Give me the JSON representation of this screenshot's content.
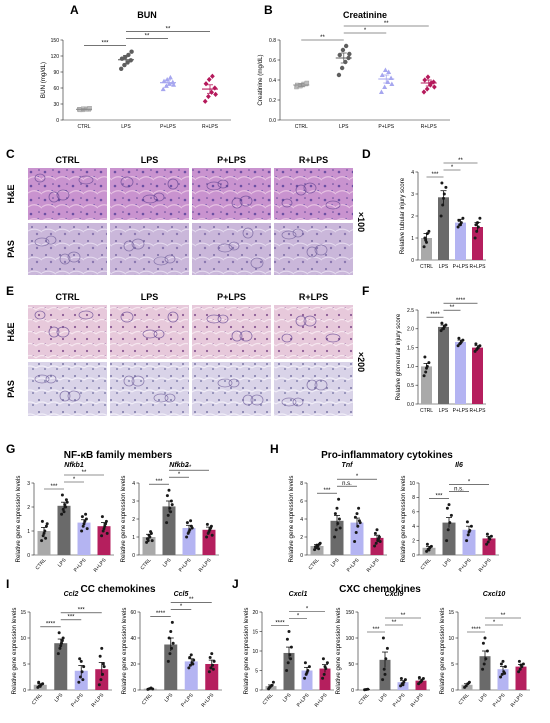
{
  "panels": [
    "A",
    "B",
    "C",
    "D",
    "E",
    "F",
    "G",
    "H",
    "I",
    "J"
  ],
  "groups": [
    "CTRL",
    "LPS",
    "P+LPS",
    "R+LPS"
  ],
  "colors": {
    "ctrl": "#8c8c8c",
    "lps": "#5e5e5e",
    "p_lps": "#a6a6ef",
    "r_lps": "#b5195b",
    "ctrl_bar": "#a9a9a9",
    "lps_bar": "#6a6a6a",
    "p_bar": "#b4b4f2",
    "r_bar": "#b51f5e"
  },
  "histology": {
    "row_labels": [
      "H&E",
      "PAS"
    ],
    "col_labels": [
      "CTRL",
      "LPS",
      "P+LPS",
      "R+LPS"
    ],
    "mag_C": "×100",
    "mag_E": "×200"
  },
  "sections": {
    "G": "NF-κB family members",
    "H": "Pro-inflammatory cytokines",
    "I": "CC chemokines",
    "J": "CXC chemokines"
  },
  "charts": [
    {
      "id": "A",
      "title": "BUN",
      "type": "scatter",
      "ylabel": "BUN (mg/dL)",
      "ylim": [
        0,
        150
      ],
      "yticks": [
        "0",
        "30",
        "60",
        "90",
        "120",
        "150"
      ],
      "sig": [
        "***",
        "**",
        "**"
      ],
      "means": [
        20,
        113,
        70,
        58
      ],
      "sem": [
        1,
        8,
        5,
        8
      ],
      "points": [
        [
          20,
          19,
          21,
          20,
          19,
          21,
          20,
          22
        ],
        [
          96,
          103,
          108,
          112,
          115,
          118,
          122,
          128
        ],
        [
          58,
          64,
          68,
          71,
          73,
          76,
          80,
          66
        ],
        [
          35,
          44,
          52,
          60,
          68,
          76,
          82,
          48
        ]
      ]
    },
    {
      "id": "B",
      "title": "Creatinine",
      "type": "scatter",
      "ylabel": "Creatinine (mg/dL)",
      "ylim": [
        0.0,
        0.8
      ],
      "yticks": [
        "0.0",
        "0.2",
        "0.4",
        "0.6",
        "0.8"
      ],
      "sig": [
        "**",
        "*",
        "**"
      ],
      "means": [
        0.35,
        0.62,
        0.41,
        0.37
      ],
      "sem": [
        0.015,
        0.05,
        0.04,
        0.03
      ],
      "points": [
        [
          0.33,
          0.34,
          0.35,
          0.36,
          0.35,
          0.34,
          0.36,
          0.37
        ],
        [
          0.45,
          0.52,
          0.58,
          0.62,
          0.65,
          0.7,
          0.74,
          0.66
        ],
        [
          0.28,
          0.33,
          0.38,
          0.42,
          0.45,
          0.5,
          0.48,
          0.36
        ],
        [
          0.28,
          0.31,
          0.35,
          0.38,
          0.4,
          0.43,
          0.37,
          0.33
        ]
      ]
    },
    {
      "id": "D",
      "type": "bar",
      "ylabel": "Relative tubular injury score",
      "ylim": [
        0,
        4
      ],
      "yticks": [
        "0",
        "1",
        "2",
        "3",
        "4"
      ],
      "sig": [
        "***",
        "*",
        "**"
      ],
      "means": [
        1.0,
        2.85,
        1.7,
        1.5
      ],
      "sem": [
        0.2,
        0.3,
        0.15,
        0.2
      ],
      "points": [
        [
          0.6,
          0.9,
          1.2,
          1.3,
          1.0,
          0.8
        ],
        [
          2.0,
          2.5,
          3.0,
          3.3,
          3.5,
          2.8
        ],
        [
          1.5,
          1.6,
          1.7,
          1.9,
          1.8,
          1.6
        ],
        [
          1.0,
          1.3,
          1.5,
          1.9,
          1.6,
          1.7
        ]
      ]
    },
    {
      "id": "F",
      "type": "bar",
      "ylabel": "Relative glomerular injury score",
      "ylim": [
        0.0,
        2.5
      ],
      "yticks": [
        "0.0",
        "0.5",
        "1.0",
        "1.5",
        "2.0",
        "2.5"
      ],
      "sig": [
        "****",
        "**",
        "****"
      ],
      "means": [
        1.0,
        2.05,
        1.65,
        1.5
      ],
      "sem": [
        0.08,
        0.05,
        0.05,
        0.05
      ],
      "points": [
        [
          0.75,
          0.85,
          1.0,
          1.1,
          1.25,
          0.95
        ],
        [
          1.95,
          2.0,
          2.05,
          2.1,
          2.15,
          2.0
        ],
        [
          1.55,
          1.6,
          1.65,
          1.7,
          1.75,
          1.62
        ],
        [
          1.4,
          1.45,
          1.5,
          1.55,
          1.6,
          1.48
        ]
      ]
    },
    {
      "id": "G1",
      "gene": "Nfkb1",
      "type": "bar",
      "ylabel": "Relative gene expression levels",
      "ylim": [
        0,
        3
      ],
      "yticks": [
        "0",
        "1",
        "2",
        "3"
      ],
      "sig": [
        "***",
        "*",
        "**"
      ],
      "means": [
        1.0,
        2.05,
        1.35,
        1.2
      ],
      "sem": [
        0.15,
        0.15,
        0.12,
        0.15
      ],
      "points": [
        [
          0.6,
          0.8,
          1.0,
          1.2,
          1.4,
          0.9,
          0.7,
          1.3
        ],
        [
          1.7,
          1.9,
          2.1,
          2.3,
          2.5,
          1.8,
          2.0,
          2.2
        ],
        [
          1.0,
          1.2,
          1.4,
          1.5,
          1.6,
          1.3,
          1.7,
          1.1
        ],
        [
          0.8,
          1.0,
          1.2,
          1.4,
          1.6,
          1.1,
          1.3,
          0.9
        ]
      ]
    },
    {
      "id": "G2",
      "gene": "Nfkb2",
      "type": "bar",
      "ylabel": "Relative gene expression levels",
      "ylim": [
        0,
        4
      ],
      "yticks": [
        "0",
        "1",
        "2",
        "3",
        "4"
      ],
      "sig": [
        "***",
        "*",
        "**"
      ],
      "means": [
        1.0,
        2.7,
        1.5,
        1.4
      ],
      "sem": [
        0.15,
        0.3,
        0.15,
        0.15
      ],
      "points": [
        [
          0.7,
          0.8,
          1.0,
          1.2,
          0.9,
          1.1,
          1.3,
          0.8
        ],
        [
          1.8,
          2.2,
          2.6,
          3.0,
          3.3,
          3.6,
          2.4,
          2.8
        ],
        [
          1.0,
          1.2,
          1.4,
          1.6,
          1.8,
          1.3,
          1.9,
          1.5
        ],
        [
          1.0,
          1.2,
          1.4,
          1.6,
          1.7,
          1.3,
          1.5,
          1.1
        ]
      ]
    },
    {
      "id": "H1",
      "gene": "Tnf",
      "type": "bar",
      "ylabel": "Relative gene expression levels",
      "ylim": [
        0,
        8
      ],
      "yticks": [
        "0",
        "2",
        "4",
        "6",
        "8"
      ],
      "sig": [
        "***",
        "n.s.",
        "*"
      ],
      "means": [
        1.0,
        3.8,
        3.6,
        1.9
      ],
      "sem": [
        0.15,
        0.6,
        0.5,
        0.3
      ],
      "points": [
        [
          0.6,
          0.8,
          1.0,
          1.2,
          0.9,
          1.1,
          0.7,
          1.3
        ],
        [
          2.0,
          2.8,
          3.5,
          4.0,
          4.6,
          5.2,
          6.2,
          3.0
        ],
        [
          1.5,
          2.5,
          3.2,
          3.8,
          4.2,
          4.6,
          5.2,
          3.6
        ],
        [
          1.0,
          1.3,
          1.6,
          2.0,
          2.4,
          2.8,
          1.8,
          1.5
        ]
      ]
    },
    {
      "id": "H2",
      "gene": "Il6",
      "type": "bar",
      "ylabel": "Relative gene expression levels",
      "ylim": [
        0,
        10
      ],
      "yticks": [
        "0",
        "2",
        "4",
        "6",
        "8",
        "10"
      ],
      "sig": [
        "***",
        "n.s.",
        "*"
      ],
      "means": [
        1.0,
        4.5,
        3.5,
        2.3
      ],
      "sem": [
        0.2,
        0.7,
        0.5,
        0.3
      ],
      "points": [
        [
          0.5,
          0.8,
          1.0,
          1.2,
          1.5,
          0.7
        ],
        [
          2.0,
          3.5,
          4.5,
          5.5,
          6.5,
          7.0
        ],
        [
          2.0,
          2.8,
          3.4,
          4.0,
          4.6,
          3.2
        ],
        [
          1.5,
          1.8,
          2.2,
          2.6,
          2.9,
          2.4
        ]
      ]
    },
    {
      "id": "I1",
      "gene": "Ccl2",
      "type": "bar",
      "ylabel": "Relative gene expression levels",
      "ylim": [
        0,
        15
      ],
      "yticks": [
        "0",
        "5",
        "10",
        "15"
      ],
      "sig": [
        "****",
        "***",
        "***"
      ],
      "means": [
        1.0,
        9.0,
        3.7,
        4.0
      ],
      "sem": [
        0.2,
        0.8,
        1.0,
        1.3
      ],
      "points": [
        [
          0.5,
          0.8,
          1.0,
          1.2,
          1.5,
          0.7
        ],
        [
          7.0,
          8.0,
          9.0,
          10.0,
          11.0,
          8.5,
          9.5
        ],
        [
          1.5,
          2.5,
          3.5,
          4.5,
          6.0,
          5.5,
          2.0
        ],
        [
          1.0,
          2.0,
          3.0,
          4.5,
          6.5,
          8.0,
          5.0
        ]
      ]
    },
    {
      "id": "I2",
      "gene": "Ccl5",
      "type": "bar",
      "ylabel": "Relative gene expression levels",
      "ylim": [
        0,
        60
      ],
      "yticks": [
        "0",
        "20",
        "40",
        "60"
      ],
      "sig": [
        "****",
        "*",
        "**"
      ],
      "means": [
        1.0,
        35,
        22,
        20
      ],
      "sem": [
        0.3,
        5,
        2,
        3
      ],
      "points": [
        [
          0.5,
          1.0,
          1.5,
          0.8
        ],
        [
          22,
          28,
          32,
          36,
          40,
          45,
          52
        ],
        [
          17,
          19,
          21,
          23,
          25,
          27,
          20
        ],
        [
          14,
          17,
          19,
          22,
          25,
          28,
          16
        ]
      ]
    },
    {
      "id": "J1",
      "gene": "Cxcl1",
      "type": "bar",
      "ylabel": "Relative gene expression levels",
      "ylim": [
        0,
        20
      ],
      "yticks": [
        "0",
        "5",
        "10",
        "15",
        "20"
      ],
      "sig": [
        "****",
        "*",
        "*"
      ],
      "means": [
        1.0,
        9.5,
        5.0,
        5.5
      ],
      "sem": [
        0.3,
        1.5,
        0.8,
        1.0
      ],
      "points": [
        [
          0.3,
          0.8,
          1.2,
          2.0,
          0.6
        ],
        [
          5.0,
          7.0,
          9.0,
          11.0,
          13.0,
          15.0,
          8.0
        ],
        [
          3.0,
          4.0,
          5.0,
          6.0,
          7.0,
          4.5
        ],
        [
          3.0,
          4.0,
          5.5,
          7.0,
          8.0,
          6.0
        ]
      ]
    },
    {
      "id": "J2",
      "gene": "Cxcl9",
      "type": "bar",
      "ylabel": "Relative gene expression levels",
      "ylim": [
        0,
        150
      ],
      "yticks": [
        "0",
        "50",
        "100",
        "150"
      ],
      "sig": [
        "***",
        "**",
        "**"
      ],
      "means": [
        1.0,
        58,
        15,
        18
      ],
      "sem": [
        0.3,
        15,
        3,
        3
      ],
      "points": [
        [
          0.5,
          1.0,
          1.5
        ],
        [
          20,
          40,
          60,
          80,
          100,
          30
        ],
        [
          8,
          12,
          15,
          20,
          22,
          10
        ],
        [
          12,
          15,
          18,
          22,
          24,
          16
        ]
      ]
    },
    {
      "id": "J3",
      "gene": "Cxcl10",
      "type": "bar",
      "ylabel": "Relative gene expression levels",
      "ylim": [
        0,
        15
      ],
      "yticks": [
        "0",
        "5",
        "10",
        "15"
      ],
      "sig": [
        "****",
        "*",
        "**"
      ],
      "means": [
        1.0,
        6.5,
        4.0,
        4.5
      ],
      "sem": [
        0.2,
        1.0,
        0.5,
        0.4
      ],
      "points": [
        [
          0.5,
          0.8,
          1.2,
          1.5
        ],
        [
          4.0,
          5.0,
          6.0,
          7.5,
          9.0,
          10.0
        ],
        [
          2.5,
          3.0,
          3.5,
          4.5,
          5.0,
          5.5,
          3.2
        ],
        [
          3.5,
          4.0,
          4.5,
          5.0,
          5.5,
          4.8
        ]
      ]
    }
  ]
}
